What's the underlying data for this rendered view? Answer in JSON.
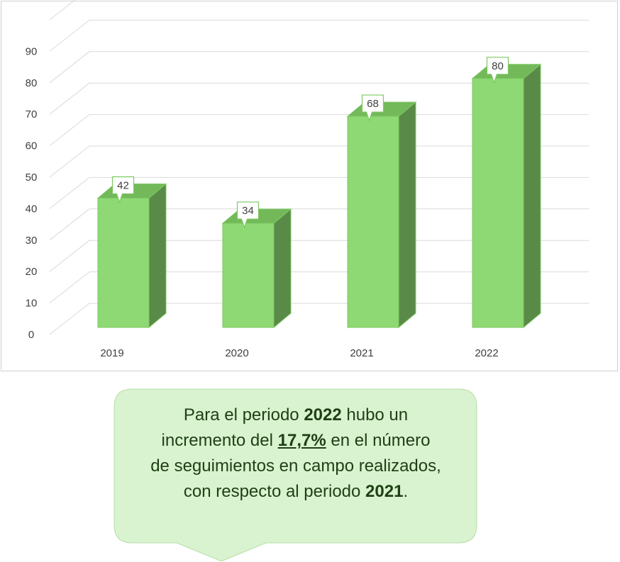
{
  "chart_data": {
    "type": "bar",
    "categories": [
      "2019",
      "2020",
      "2021",
      "2022"
    ],
    "values": [
      42,
      34,
      68,
      80
    ],
    "data_labels": [
      "42",
      "34",
      "68",
      "80"
    ],
    "y_ticks": [
      "0",
      "10",
      "20",
      "30",
      "40",
      "50",
      "60",
      "70",
      "80",
      "90"
    ],
    "ylim": [
      0,
      100
    ],
    "grid": true,
    "three_d": true,
    "bar_colors": {
      "front": "#8ed973",
      "side": "#5a8a48",
      "top": "#73b95a"
    },
    "title": "",
    "xlabel": "",
    "ylabel": ""
  },
  "callout": {
    "line1_pre": "Para el periodo ",
    "line1_bold": "2022",
    "line1_post": " hubo un",
    "line2_pre": "incremento del ",
    "line2_underline": "17,7%",
    "line2_post": " en el número",
    "line3": "de seguimientos en campo realizados,",
    "line4_pre": "con respecto al periodo ",
    "line4_bold": "2021",
    "line4_post": ".",
    "bg_color": "#d9f2d0",
    "text_color": "#1e3f14"
  }
}
